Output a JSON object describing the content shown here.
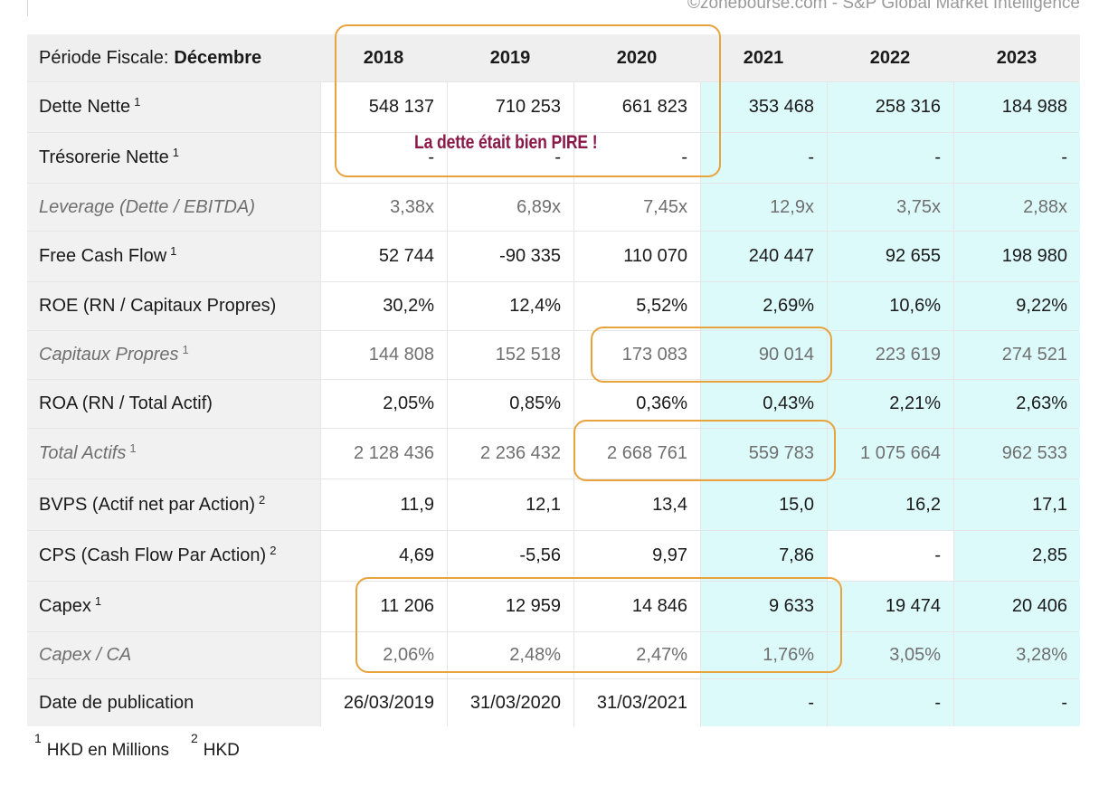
{
  "source": "©zonebourse.com - S&P Global Market Intelligence",
  "header": {
    "period_prefix": "Période Fiscale:",
    "period_value": "Décembre",
    "years": [
      "2018",
      "2019",
      "2020",
      "2021",
      "2022",
      "2023"
    ],
    "forecast_from_index": 3
  },
  "rows": [
    {
      "label": "Dette Nette",
      "note": "1",
      "italic": false,
      "values": [
        "548 137",
        "710 253",
        "661 823",
        "353 468",
        "258 316",
        "184 988"
      ]
    },
    {
      "label": "Trésorerie Nette",
      "note": "1",
      "italic": false,
      "values": [
        "-",
        "-",
        "-",
        "-",
        "-",
        "-"
      ]
    },
    {
      "label": "Leverage (Dette / EBITDA)",
      "note": "",
      "italic": true,
      "values": [
        "3,38x",
        "6,89x",
        "7,45x",
        "12,9x",
        "3,75x",
        "2,88x"
      ]
    },
    {
      "label": "Free Cash Flow",
      "note": "1",
      "italic": false,
      "values": [
        "52 744",
        "-90 335",
        "110 070",
        "240 447",
        "92 655",
        "198 980"
      ]
    },
    {
      "label": "ROE (RN / Capitaux Propres)",
      "note": "",
      "italic": false,
      "values": [
        "30,2%",
        "12,4%",
        "5,52%",
        "2,69%",
        "10,6%",
        "9,22%"
      ]
    },
    {
      "label": "Capitaux Propres",
      "note": "1",
      "italic": true,
      "values": [
        "144 808",
        "152 518",
        "173 083",
        "90 014",
        "223 619",
        "274 521"
      ]
    },
    {
      "label": "ROA (RN / Total Actif)",
      "note": "",
      "italic": false,
      "values": [
        "2,05%",
        "0,85%",
        "0,36%",
        "0,43%",
        "2,21%",
        "2,63%"
      ]
    },
    {
      "label": "Total Actifs",
      "note": "1",
      "italic": true,
      "values": [
        "2 128 436",
        "2 236 432",
        "2 668 761",
        "559 783",
        "1 075 664",
        "962 533"
      ]
    },
    {
      "label": "BVPS (Actif net par Action)",
      "note": "2",
      "italic": false,
      "values": [
        "11,9",
        "12,1",
        "13,4",
        "15,0",
        "16,2",
        "17,1"
      ]
    },
    {
      "label": "CPS (Cash Flow Par Action)",
      "note": "2",
      "italic": false,
      "values": [
        "4,69",
        "-5,56",
        "9,97",
        "7,86",
        "-",
        "2,85"
      ],
      "no_fill_cols": [
        4
      ]
    },
    {
      "label": "Capex",
      "note": "1",
      "italic": false,
      "values": [
        "11 206",
        "12 959",
        "14 846",
        "9 633",
        "19 474",
        "20 406"
      ]
    },
    {
      "label": "Capex / CA",
      "note": "",
      "italic": true,
      "values": [
        "2,06%",
        "2,48%",
        "2,47%",
        "1,76%",
        "3,05%",
        "3,28%"
      ]
    },
    {
      "label": "Date de publication",
      "note": "",
      "italic": false,
      "values": [
        "26/03/2019",
        "31/03/2020",
        "31/03/2021",
        "-",
        "-",
        "-"
      ]
    }
  ],
  "footnotes": [
    {
      "mark": "1",
      "text": "HKD en Millions"
    },
    {
      "mark": "2",
      "text": "HKD"
    }
  ],
  "annotation": {
    "text": "La dette était bien PIRE !",
    "color": "#8a1848",
    "box_color": "#e8a33d"
  },
  "colors": {
    "forecast_bg": "#ddfafb",
    "label_bg": "#f1f1f1",
    "muted_text": "#6f6f6f"
  }
}
